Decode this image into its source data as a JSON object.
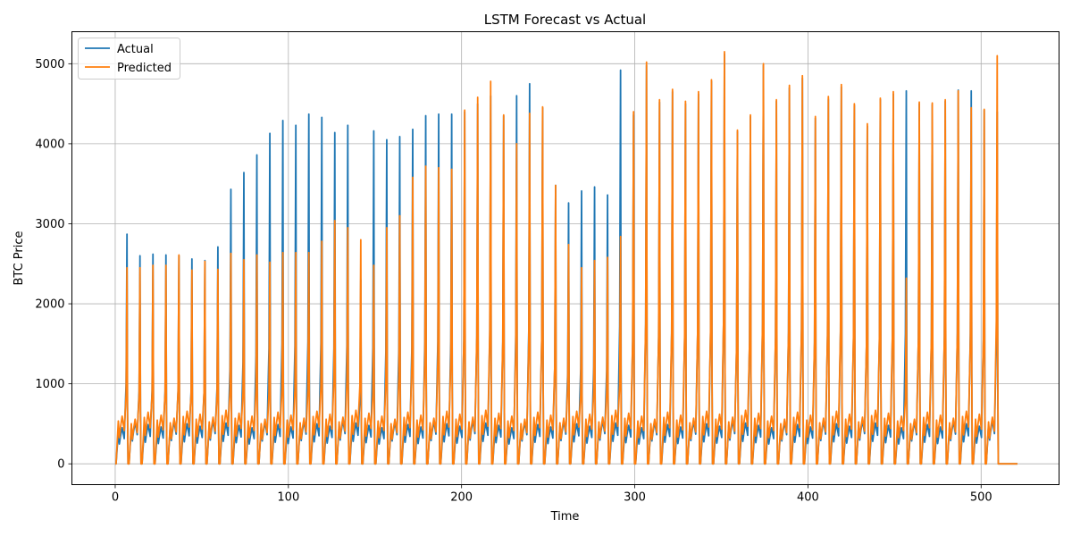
{
  "chart_data": {
    "type": "line",
    "title": "LSTM Forecast vs Actual",
    "xlabel": "Time",
    "ylabel": "BTC Price",
    "xlim": [
      -25,
      545
    ],
    "ylim": [
      -260,
      5400
    ],
    "xticks": [
      0,
      100,
      200,
      300,
      400,
      500
    ],
    "yticks": [
      0,
      1000,
      2000,
      3000,
      4000,
      5000
    ],
    "grid": true,
    "legend": "upper-left",
    "period": 7.5,
    "x_start": 0,
    "x_end": 521,
    "series": [
      {
        "name": "Actual",
        "color": "#1f77b4",
        "mid_level": 500,
        "peaks": [
          2870,
          2600,
          2620,
          2610,
          2600,
          2560,
          2540,
          2710,
          3430,
          3640,
          3860,
          4130,
          4290,
          4230,
          4370,
          4330,
          4140,
          4230,
          2300,
          4160,
          4050,
          4090,
          4180,
          4350,
          4370,
          4370,
          4400,
          4500,
          4600,
          4350,
          4600,
          4750,
          4450,
          3480,
          3260,
          3410,
          3460,
          3360,
          4920,
          4360,
          4980,
          4520,
          4650,
          4500,
          4620,
          4780,
          5120,
          4150,
          4340,
          4980,
          4530,
          4700,
          4820,
          4320,
          4560,
          4710,
          4480,
          4220,
          4550,
          4620,
          4660,
          4500,
          4490,
          4530,
          4670,
          4660,
          4420,
          4400
        ]
      },
      {
        "name": "Predicted",
        "color": "#ff7f0e",
        "mid_level": 620,
        "peaks": [
          2450,
          2450,
          2480,
          2480,
          2610,
          2420,
          2530,
          2430,
          2630,
          2550,
          2610,
          2520,
          2640,
          2640,
          2640,
          2780,
          3040,
          2950,
          2800,
          2480,
          2950,
          3100,
          3580,
          3720,
          3700,
          3680,
          4420,
          4580,
          4780,
          4360,
          4000,
          4380,
          4460,
          3480,
          2740,
          2450,
          2540,
          2580,
          2840,
          4400,
          5020,
          4550,
          4680,
          4530,
          4650,
          4800,
          5150,
          4170,
          4360,
          5000,
          4550,
          4730,
          4850,
          4340,
          4590,
          4740,
          4500,
          4250,
          4570,
          4650,
          2320,
          4520,
          4510,
          4550,
          4660,
          4450,
          4430,
          5100
        ]
      }
    ]
  }
}
